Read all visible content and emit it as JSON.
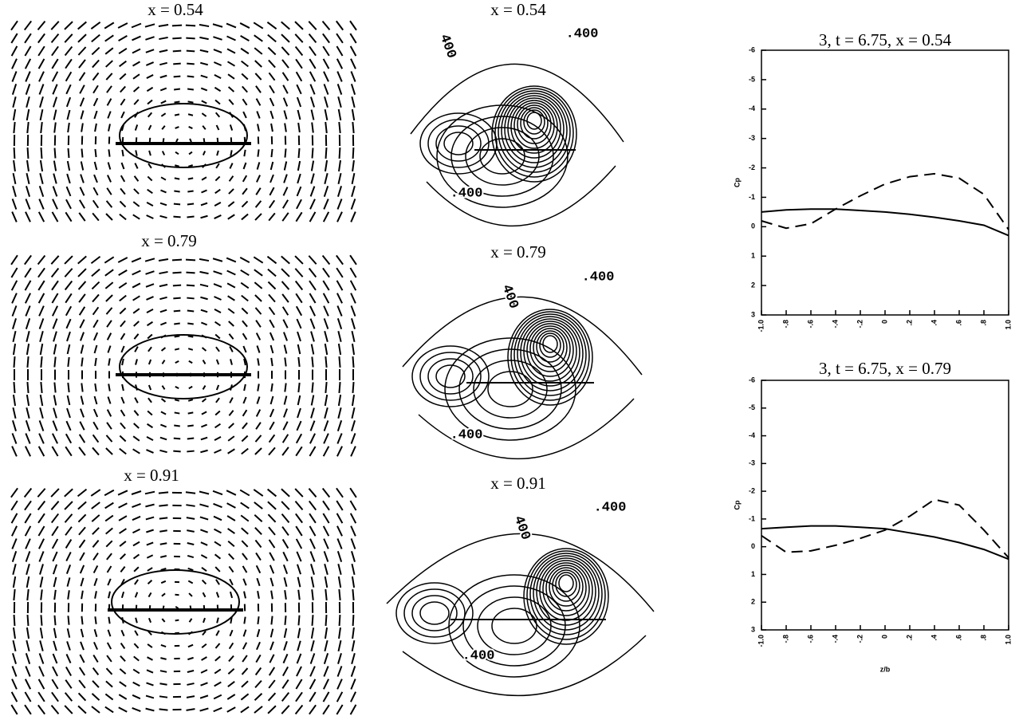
{
  "chart_data": [
    {
      "type": "quiver",
      "title": "x = 0.54"
    },
    {
      "type": "quiver",
      "title": "x = 0.79"
    },
    {
      "type": "quiver",
      "title": "x = 0.91"
    },
    {
      "type": "contour",
      "title": "x = 0.54",
      "annotations": [
        ".400",
        ".400",
        "400"
      ]
    },
    {
      "type": "contour",
      "title": "x = 0.79",
      "annotations": [
        ".400",
        ".400",
        "400"
      ]
    },
    {
      "type": "contour",
      "title": "x = 0.91",
      "annotations": [
        ".400",
        ".400",
        "400"
      ]
    },
    {
      "type": "line",
      "title": "3, t = 6.75, x = 0.54",
      "ylabel": "Cp",
      "x": [
        -1.0,
        -0.8,
        -0.6,
        -0.4,
        -0.2,
        0,
        0.2,
        0.4,
        0.6,
        0.8,
        1.0
      ],
      "series": [
        {
          "color": "#000000",
          "style": "solid",
          "values": [
            -0.5,
            -0.57,
            -0.6,
            -0.6,
            -0.55,
            -0.5,
            -0.42,
            -0.32,
            -0.2,
            -0.05,
            0.3
          ]
        },
        {
          "color": "#000000",
          "style": "dashed",
          "values": [
            -0.2,
            0.05,
            -0.1,
            -0.6,
            -1.05,
            -1.45,
            -1.7,
            -1.8,
            -1.65,
            -1.1,
            0.1
          ]
        }
      ],
      "ylim": [
        3,
        -6
      ],
      "yticks": [
        -6,
        -5,
        -4,
        -3,
        -2,
        -1,
        0,
        1,
        2,
        3
      ],
      "xlim": [
        -1.0,
        1.0
      ],
      "xticks": [
        {
          "value": -1.0,
          "label": "-1.0"
        },
        {
          "value": -0.8,
          "label": "-.8"
        },
        {
          "value": -0.6,
          "label": "-.6"
        },
        {
          "value": -0.4,
          "label": "-.4"
        },
        {
          "value": -0.2,
          "label": "-.2"
        },
        0,
        {
          "value": 0.2,
          "label": ".2"
        },
        {
          "value": 0.4,
          "label": ".4"
        },
        {
          "value": 0.6,
          "label": ".6"
        },
        {
          "value": 0.8,
          "label": ".8"
        },
        {
          "value": 1.0,
          "label": "1.0"
        }
      ]
    },
    {
      "type": "line",
      "title": "3, t = 6.75, x = 0.79",
      "ylabel": "Cp",
      "xlabel": "z/b",
      "x": [
        -1.0,
        -0.8,
        -0.6,
        -0.4,
        -0.2,
        0,
        0.2,
        0.4,
        0.6,
        0.8,
        1.0
      ],
      "series": [
        {
          "color": "#000000",
          "style": "solid",
          "values": [
            -0.65,
            -0.7,
            -0.75,
            -0.75,
            -0.7,
            -0.65,
            -0.5,
            -0.35,
            -0.15,
            0.1,
            0.45
          ]
        },
        {
          "color": "#000000",
          "style": "dashed",
          "values": [
            -0.4,
            0.2,
            0.15,
            -0.05,
            -0.3,
            -0.6,
            -1.1,
            -1.7,
            -1.5,
            -0.6,
            0.4
          ]
        }
      ],
      "ylim": [
        3,
        -6
      ],
      "yticks": [
        -6,
        -5,
        -4,
        -3,
        -2,
        -1,
        0,
        1,
        2,
        3
      ],
      "xlim": [
        -1.0,
        1.0
      ],
      "xticks": [
        {
          "value": -1.0,
          "label": "-1.0"
        },
        {
          "value": -0.8,
          "label": "-.8"
        },
        {
          "value": -0.6,
          "label": "-.6"
        },
        {
          "value": -0.4,
          "label": "-.4"
        },
        {
          "value": -0.2,
          "label": "-.2"
        },
        0,
        {
          "value": 0.2,
          "label": ".2"
        },
        {
          "value": 0.4,
          "label": ".4"
        },
        {
          "value": 0.6,
          "label": ".6"
        },
        {
          "value": 0.8,
          "label": ".8"
        },
        {
          "value": 1.0,
          "label": "1.0"
        }
      ]
    }
  ]
}
